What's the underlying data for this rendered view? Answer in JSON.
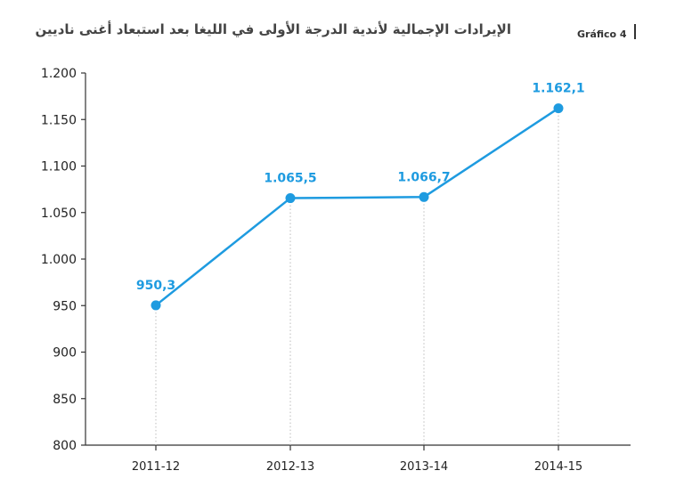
{
  "title": "الإيرادات الإجمالية لأندية الدرجة الأولى في الليغا بعد استبعاد أغنى ناديين",
  "tag": "Gráfico 4",
  "colors": {
    "line": "#1E9BE0",
    "label": "#1E9BE0",
    "axis": "#333333",
    "guide": "#bbbbbb"
  },
  "chart_data": {
    "type": "line",
    "title": "الإيرادات الإجمالية لأندية الدرجة الأولى في الليغا بعد استبعاد أغنى ناديين",
    "xlabel": "",
    "ylabel": "",
    "categories": [
      "2011-12",
      "2012-13",
      "2013-14",
      "2014-15"
    ],
    "values": [
      950.3,
      1065.5,
      1066.7,
      1162.1
    ],
    "data_labels": [
      "950,3",
      "1.065,5",
      "1.066,7",
      "1.162,1"
    ],
    "ylim": [
      800,
      1200
    ],
    "yticks": [
      800,
      850,
      900,
      950,
      1000,
      1050,
      1100,
      1150,
      1200
    ],
    "ytick_labels": [
      "800",
      "850",
      "900",
      "950",
      "1.000",
      "1.050",
      "1.100",
      "1.150",
      "1.200"
    ],
    "grid": false,
    "vertical_guides": true
  }
}
